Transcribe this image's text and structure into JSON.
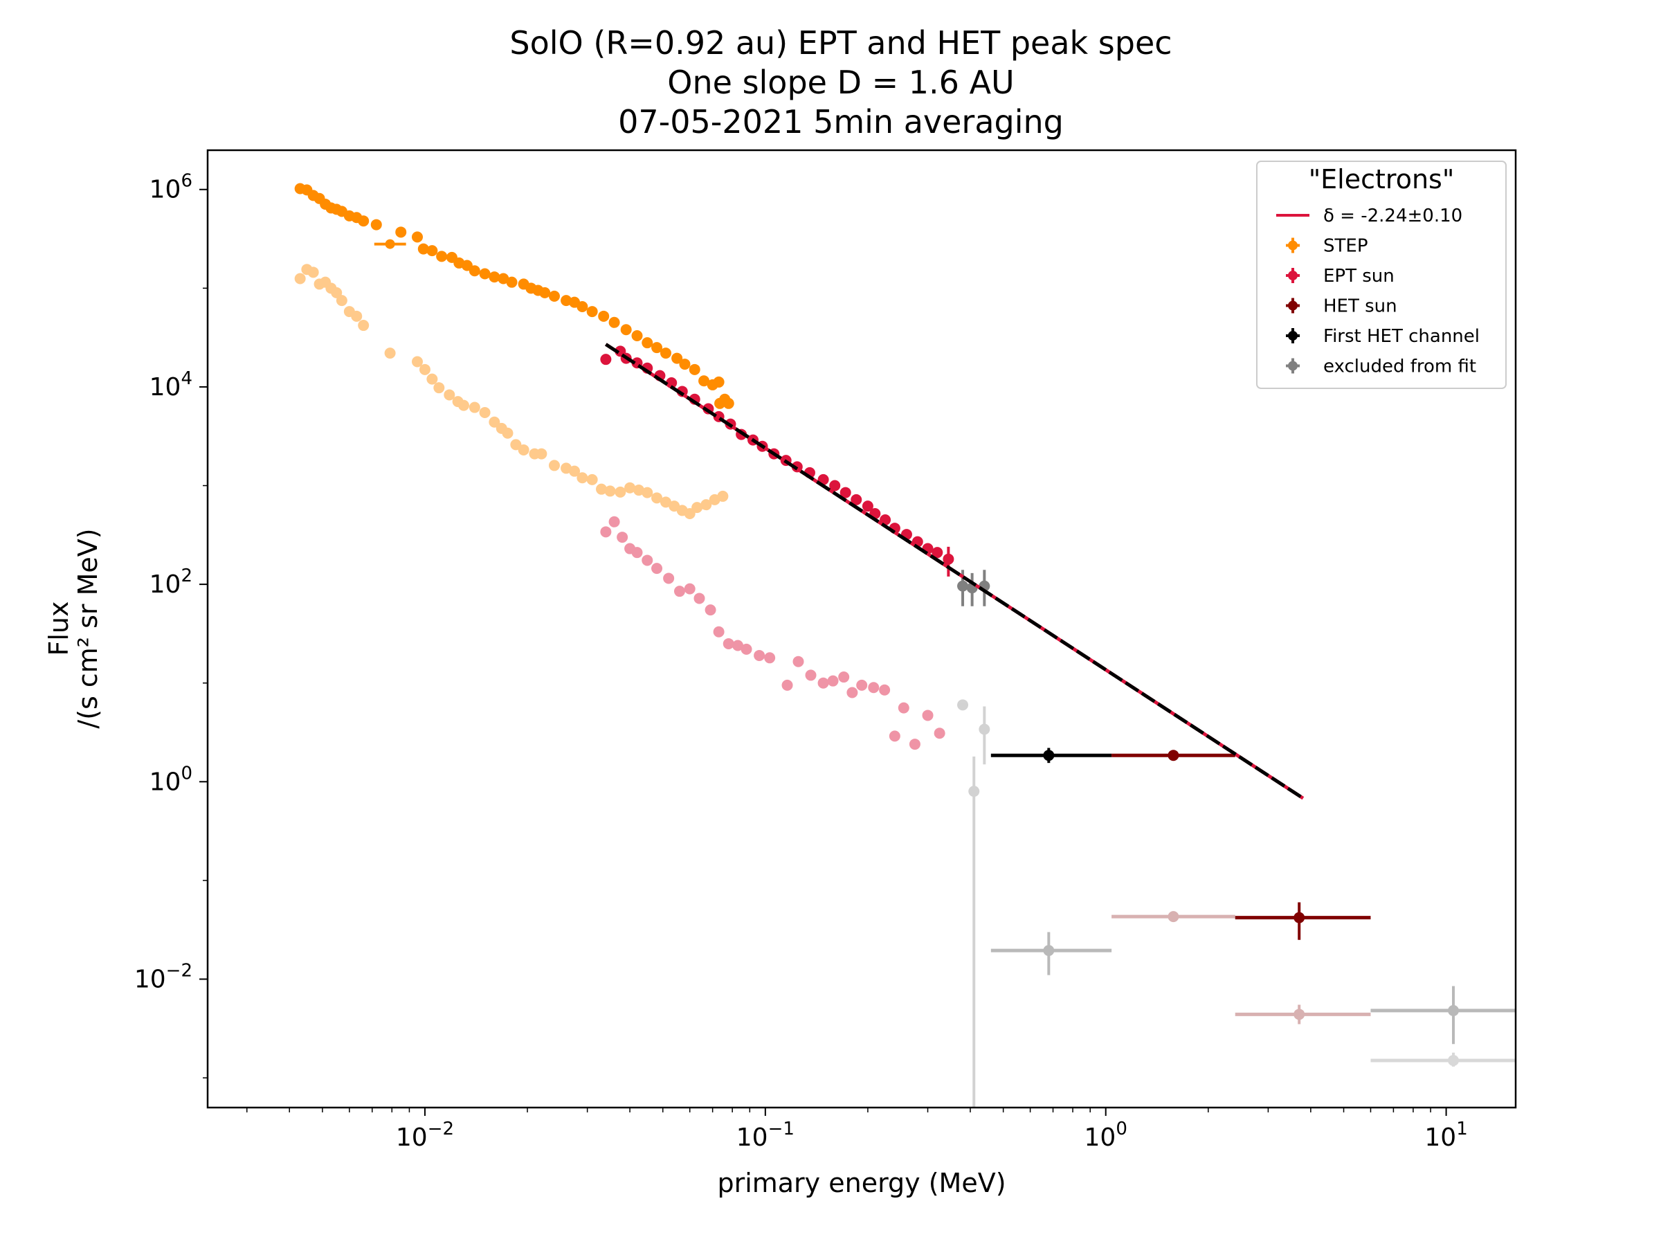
{
  "chart_data": {
    "type": "scatter",
    "title_lines": [
      "SolO  (R=0.92 au) EPT and HET  peak spec",
      "One slope D = 1.6 AU",
      "07-05-2021  5min  averaging"
    ],
    "xlabel": "primary energy (MeV)",
    "ylabel_lines": [
      "Flux",
      "/(s cm² sr MeV)"
    ],
    "xscale": "log",
    "yscale": "log",
    "xlim": [
      0.0023,
      16
    ],
    "ylim": [
      0.0005,
      2500000
    ],
    "x_ticks": [
      {
        "value": 0.01,
        "base": "10",
        "exp": "−2"
      },
      {
        "value": 0.1,
        "base": "10",
        "exp": "−1"
      },
      {
        "value": 1,
        "base": "10",
        "exp": "0"
      },
      {
        "value": 10,
        "base": "10",
        "exp": "1"
      }
    ],
    "y_ticks": [
      {
        "value": 1000000,
        "base": "10",
        "exp": "6"
      },
      {
        "value": 10000,
        "base": "10",
        "exp": "4"
      },
      {
        "value": 100,
        "base": "10",
        "exp": "2"
      },
      {
        "value": 1,
        "base": "10",
        "exp": "0"
      },
      {
        "value": 0.01,
        "base": "10",
        "exp": "−2"
      }
    ],
    "legend": {
      "title": "\"Electrons\"",
      "position": "top-right",
      "entries": [
        {
          "label": "δ = -2.24±0.10",
          "kind": "line",
          "color": "#dc143c"
        },
        {
          "label": "STEP",
          "kind": "errorbar",
          "color": "#ff8c00"
        },
        {
          "label": "EPT sun",
          "kind": "errorbar",
          "color": "#dc143c"
        },
        {
          "label": "HET sun",
          "kind": "errorbar",
          "color": "#800000"
        },
        {
          "label": "First HET channel",
          "kind": "errorbar",
          "color": "#000000"
        },
        {
          "label": "excluded from fit",
          "kind": "errorbar",
          "color": "#808080"
        }
      ]
    },
    "fit": {
      "label": "δ = -2.24±0.10",
      "slope": -2.24,
      "x": [
        0.034,
        3.8
      ],
      "y": [
        27000,
        0.68
      ],
      "color": "#dc143c",
      "overlay_color": "#000000"
    },
    "series": [
      {
        "name": "STEP",
        "color": "#ff8c00",
        "opacity": 1,
        "points": [
          [
            0.0043,
            1020000
          ],
          [
            0.0045,
            990000
          ],
          [
            0.0047,
            870000
          ],
          [
            0.0049,
            810000
          ],
          [
            0.0051,
            710000
          ],
          [
            0.0053,
            650000
          ],
          [
            0.0055,
            630000
          ],
          [
            0.0057,
            600000
          ],
          [
            0.006,
            540000
          ],
          [
            0.0063,
            520000
          ],
          [
            0.0066,
            480000
          ],
          [
            0.0072,
            440000
          ],
          [
            0.0085,
            370000
          ],
          [
            0.0095,
            330000
          ],
          [
            0.0099,
            250000
          ],
          [
            0.0105,
            240000
          ],
          [
            0.0112,
            210000
          ],
          [
            0.012,
            205000
          ],
          [
            0.0126,
            180000
          ],
          [
            0.0133,
            170000
          ],
          [
            0.014,
            150000
          ],
          [
            0.015,
            140000
          ],
          [
            0.016,
            130000
          ],
          [
            0.017,
            125000
          ],
          [
            0.018,
            115000
          ],
          [
            0.0195,
            110000
          ],
          [
            0.0205,
            100000
          ],
          [
            0.0215,
            95000
          ],
          [
            0.0225,
            90000
          ],
          [
            0.024,
            83000
          ],
          [
            0.026,
            75000
          ],
          [
            0.0275,
            72000
          ],
          [
            0.029,
            65000
          ],
          [
            0.031,
            58000
          ],
          [
            0.0335,
            52000
          ],
          [
            0.036,
            45000
          ],
          [
            0.039,
            38000
          ],
          [
            0.042,
            33000
          ],
          [
            0.045,
            28000
          ],
          [
            0.048,
            25000
          ],
          [
            0.051,
            22000
          ],
          [
            0.055,
            19500
          ],
          [
            0.058,
            17000
          ],
          [
            0.062,
            15000
          ],
          [
            0.066,
            11500
          ],
          [
            0.07,
            10500
          ],
          [
            0.073,
            11200
          ],
          [
            0.076,
            7500
          ],
          [
            0.0735,
            6800
          ],
          [
            0.078,
            6800
          ]
        ],
        "xerr_points": [
          {
            "x": 0.0079,
            "y": 280000,
            "lo": 0.0071,
            "hi": 0.0088
          }
        ]
      },
      {
        "name": "EPT sun",
        "color": "#dc143c",
        "opacity": 1,
        "points": [
          [
            0.034,
            19000
          ],
          [
            0.0375,
            23000
          ],
          [
            0.039,
            19500
          ],
          [
            0.042,
            17500
          ],
          [
            0.045,
            15500
          ],
          [
            0.049,
            13000
          ],
          [
            0.053,
            11000
          ],
          [
            0.057,
            9000
          ],
          [
            0.062,
            7500
          ],
          [
            0.068,
            6000
          ],
          [
            0.073,
            5000
          ],
          [
            0.079,
            4200
          ],
          [
            0.085,
            3300
          ],
          [
            0.092,
            2900
          ],
          [
            0.098,
            2500
          ],
          [
            0.106,
            2100
          ],
          [
            0.115,
            1800
          ],
          [
            0.124,
            1550
          ],
          [
            0.135,
            1350
          ],
          [
            0.148,
            1150
          ],
          [
            0.16,
            1000
          ],
          [
            0.172,
            850
          ],
          [
            0.185,
            720
          ],
          [
            0.2,
            620
          ],
          [
            0.21,
            520
          ],
          [
            0.225,
            450
          ],
          [
            0.24,
            370
          ],
          [
            0.26,
            320
          ],
          [
            0.28,
            270
          ],
          [
            0.3,
            230
          ],
          [
            0.32,
            210
          ],
          [
            0.345,
            180
          ]
        ],
        "yerr_points": [
          {
            "x": 0.345,
            "y": 180,
            "lo": 120,
            "hi": 240
          }
        ]
      },
      {
        "name": "excluded from fit",
        "color": "#808080",
        "opacity": 1,
        "points": [
          [
            0.38,
            96
          ],
          [
            0.405,
            92
          ],
          [
            0.44,
            96
          ]
        ],
        "yerr_points": [
          {
            "x": 0.38,
            "y": 96,
            "lo": 60,
            "hi": 140
          },
          {
            "x": 0.405,
            "y": 92,
            "lo": 60,
            "hi": 130
          },
          {
            "x": 0.44,
            "y": 96,
            "lo": 60,
            "hi": 140
          }
        ]
      },
      {
        "name": "First HET channel",
        "color": "#000000",
        "opacity": 1,
        "points": [],
        "errbar_points": [
          {
            "x": 0.68,
            "y": 1.85,
            "xlo": 0.46,
            "xhi": 1.04,
            "ylo": 1.55,
            "yhi": 2.2
          }
        ]
      },
      {
        "name": "HET sun",
        "color": "#800000",
        "opacity": 1,
        "points": [],
        "errbar_points": [
          {
            "x": 1.58,
            "y": 1.85,
            "xlo": 1.04,
            "xhi": 2.4,
            "ylo": 1.75,
            "yhi": 1.95
          },
          {
            "x": 3.7,
            "y": 0.042,
            "xlo": 2.4,
            "xhi": 6.0,
            "ylo": 0.025,
            "yhi": 0.06
          }
        ]
      },
      {
        "name": "STEP background",
        "color": "#ff8c00",
        "opacity": 0.45,
        "points": [
          [
            0.0043,
            125000
          ],
          [
            0.0045,
            155000
          ],
          [
            0.0047,
            145000
          ],
          [
            0.0049,
            110000
          ],
          [
            0.0051,
            115000
          ],
          [
            0.0053,
            100000
          ],
          [
            0.0055,
            90000
          ],
          [
            0.0057,
            75000
          ],
          [
            0.006,
            58000
          ],
          [
            0.0063,
            52000
          ],
          [
            0.0066,
            42000
          ],
          [
            0.0079,
            22000
          ],
          [
            0.0095,
            18000
          ],
          [
            0.01,
            15000
          ],
          [
            0.0105,
            12000
          ],
          [
            0.011,
            9800
          ],
          [
            0.0118,
            8300
          ],
          [
            0.0125,
            7100
          ],
          [
            0.013,
            6500
          ],
          [
            0.014,
            6200
          ],
          [
            0.015,
            5500
          ],
          [
            0.016,
            4400
          ],
          [
            0.0168,
            3800
          ],
          [
            0.0175,
            3400
          ],
          [
            0.0185,
            2600
          ],
          [
            0.0195,
            2300
          ],
          [
            0.021,
            2100
          ],
          [
            0.022,
            2100
          ],
          [
            0.024,
            1600
          ],
          [
            0.026,
            1500
          ],
          [
            0.0275,
            1400
          ],
          [
            0.029,
            1200
          ],
          [
            0.031,
            1150
          ],
          [
            0.033,
            920
          ],
          [
            0.035,
            880
          ],
          [
            0.0375,
            860
          ],
          [
            0.04,
            950
          ],
          [
            0.0425,
            900
          ],
          [
            0.045,
            850
          ],
          [
            0.048,
            750
          ],
          [
            0.051,
            680
          ],
          [
            0.054,
            620
          ],
          [
            0.057,
            560
          ],
          [
            0.06,
            520
          ],
          [
            0.063,
            600
          ],
          [
            0.067,
            640
          ],
          [
            0.071,
            720
          ],
          [
            0.075,
            780
          ]
        ]
      },
      {
        "name": "EPT background",
        "color": "#dc143c",
        "opacity": 0.45,
        "points": [
          [
            0.034,
            340
          ],
          [
            0.036,
            430
          ],
          [
            0.038,
            300
          ],
          [
            0.04,
            230
          ],
          [
            0.042,
            210
          ],
          [
            0.045,
            175
          ],
          [
            0.048,
            145
          ],
          [
            0.052,
            115
          ],
          [
            0.056,
            85
          ],
          [
            0.06,
            90
          ],
          [
            0.064,
            72
          ],
          [
            0.069,
            55
          ],
          [
            0.073,
            33
          ],
          [
            0.078,
            25
          ],
          [
            0.083,
            24
          ],
          [
            0.088,
            22
          ],
          [
            0.096,
            19
          ],
          [
            0.103,
            18
          ],
          [
            0.116,
            9.5
          ],
          [
            0.125,
            16.5
          ],
          [
            0.136,
            12
          ],
          [
            0.148,
            10
          ],
          [
            0.158,
            10.5
          ],
          [
            0.17,
            11.5
          ],
          [
            0.18,
            8
          ],
          [
            0.192,
            9.5
          ],
          [
            0.208,
            9
          ],
          [
            0.224,
            8.5
          ],
          [
            0.24,
            2.9
          ],
          [
            0.255,
            5.6
          ],
          [
            0.275,
            2.4
          ],
          [
            0.3,
            4.7
          ],
          [
            0.325,
            3.1
          ]
        ]
      },
      {
        "name": "excluded background",
        "color": "#808080",
        "opacity": 0.35,
        "points": [
          [
            0.38,
            6.0
          ],
          [
            0.44,
            3.4
          ],
          [
            0.41,
            0.8
          ]
        ],
        "yerr_points": [
          {
            "x": 0.41,
            "y": 0.8,
            "lo": 0.0004,
            "hi": 1.8
          },
          {
            "x": 0.44,
            "y": 3.4,
            "lo": 1.5,
            "hi": 5.8
          }
        ]
      },
      {
        "name": "HET background",
        "color": "#808080",
        "opacity": 0.55,
        "points": [],
        "errbar_points": [
          {
            "x": 0.68,
            "y": 0.0195,
            "xlo": 0.46,
            "xhi": 1.04,
            "ylo": 0.011,
            "yhi": 0.03
          },
          {
            "x": 10.5,
            "y": 0.0048,
            "xlo": 6.0,
            "xhi": 16,
            "ylo": 0.0022,
            "yhi": 0.0085
          }
        ]
      },
      {
        "name": "HET sun background",
        "color": "#800000",
        "opacity": 0.3,
        "points": [],
        "errbar_points": [
          {
            "x": 1.58,
            "y": 0.043,
            "xlo": 1.04,
            "xhi": 2.4,
            "ylo": 0.04,
            "yhi": 0.047
          },
          {
            "x": 3.7,
            "y": 0.0044,
            "xlo": 2.4,
            "xhi": 6.0,
            "ylo": 0.0035,
            "yhi": 0.0055
          }
        ]
      },
      {
        "name": "excluded HET background",
        "color": "#808080",
        "opacity": 0.3,
        "points": [],
        "errbar_points": [
          {
            "x": 10.5,
            "y": 0.0015,
            "xlo": 6.0,
            "xhi": 16,
            "ylo": 0.0013,
            "yhi": 0.0018
          }
        ]
      }
    ],
    "grid": false
  }
}
